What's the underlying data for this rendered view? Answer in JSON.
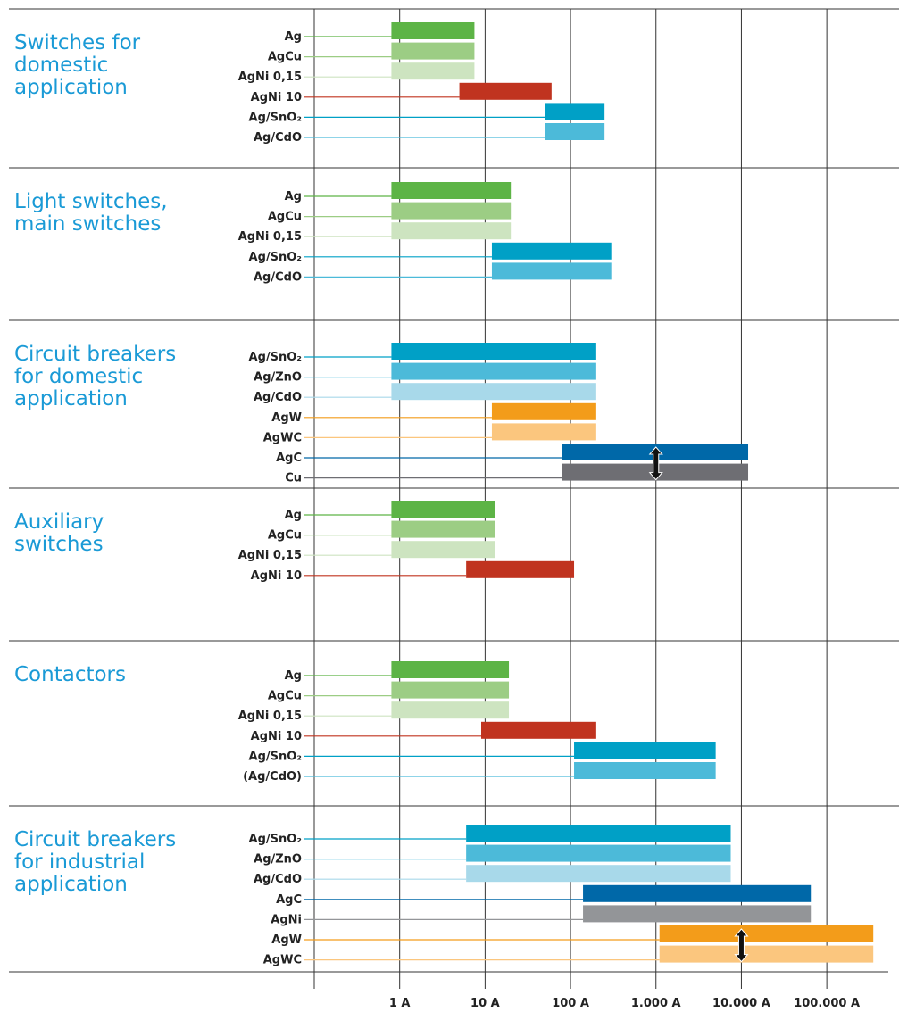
{
  "chart_data": {
    "type": "floating-bar",
    "log_scale": true,
    "xlim": [
      0.1,
      700000
    ],
    "xticks": [
      {
        "value": 1,
        "label": "1 A"
      },
      {
        "value": 10,
        "label": "10 A"
      },
      {
        "value": 100,
        "label": "100 A"
      },
      {
        "value": 1000,
        "label": "1.000 A"
      },
      {
        "value": 10000,
        "label": "10.000 A"
      },
      {
        "value": 100000,
        "label": "100.000 A"
      }
    ],
    "grid": true,
    "groups": [
      {
        "name_lines": [
          "Switches for",
          "domestic",
          "application"
        ],
        "rows": [
          {
            "name": "Ag",
            "color": "#5db446",
            "range": [
              0.8,
              7.5
            ]
          },
          {
            "name": "AgCu",
            "color": "#9ccd84",
            "range": [
              0.8,
              7.5
            ]
          },
          {
            "name": "AgNi 0,15",
            "color": "#cde4c0",
            "range": [
              0.8,
              7.5
            ]
          },
          {
            "name": "AgNi 10",
            "color": "#c0331f",
            "range": [
              5,
              60
            ]
          },
          {
            "name": "Ag/SnO₂",
            "color": "#00a0c6",
            "range": [
              50,
              250
            ]
          },
          {
            "name": "Ag/CdO",
            "color": "#4cbad9",
            "range": [
              50,
              250
            ]
          }
        ]
      },
      {
        "name_lines": [
          "Light switches,",
          "main switches"
        ],
        "rows": [
          {
            "name": "Ag",
            "color": "#5db446",
            "range": [
              0.8,
              20
            ]
          },
          {
            "name": "AgCu",
            "color": "#9ccd84",
            "range": [
              0.8,
              20
            ]
          },
          {
            "name": "AgNi 0,15",
            "color": "#cde4c0",
            "range": [
              0.8,
              20
            ]
          },
          {
            "name": "Ag/SnO₂",
            "color": "#00a0c6",
            "range": [
              12,
              300
            ]
          },
          {
            "name": "Ag/CdO",
            "color": "#4cbad9",
            "range": [
              12,
              300
            ]
          }
        ]
      },
      {
        "name_lines": [
          "Circuit breakers",
          "for domestic",
          "application"
        ],
        "arrow_at": 1000,
        "rows": [
          {
            "name": "Ag/SnO₂",
            "color": "#00a0c6",
            "range": [
              0.8,
              200
            ]
          },
          {
            "name": "Ag/ZnO",
            "color": "#4cbad9",
            "range": [
              0.8,
              200
            ]
          },
          {
            "name": "Ag/CdO",
            "color": "#a8d9ea",
            "range": [
              0.8,
              200
            ]
          },
          {
            "name": "AgW",
            "color": "#f39c1a",
            "range": [
              12,
              200
            ]
          },
          {
            "name": "AgWC",
            "color": "#fbc67e",
            "range": [
              12,
              200
            ]
          },
          {
            "name": "AgC",
            "color": "#0068a8",
            "range": [
              80,
              12000
            ]
          },
          {
            "name": "Cu",
            "color": "#6e6e73",
            "range": [
              80,
              12000
            ]
          }
        ]
      },
      {
        "name_lines": [
          "Auxiliary",
          "switches"
        ],
        "rows": [
          {
            "name": "Ag",
            "color": "#5db446",
            "range": [
              0.8,
              13
            ]
          },
          {
            "name": "AgCu",
            "color": "#9ccd84",
            "range": [
              0.8,
              13
            ]
          },
          {
            "name": "AgNi 0,15",
            "color": "#cde4c0",
            "range": [
              0.8,
              13
            ]
          },
          {
            "name": "AgNi 10",
            "color": "#c0331f",
            "range": [
              6,
              110
            ]
          }
        ]
      },
      {
        "name_lines": [
          "Contactors"
        ],
        "rows": [
          {
            "name": "Ag",
            "color": "#5db446",
            "range": [
              0.8,
              19
            ]
          },
          {
            "name": "AgCu",
            "color": "#9ccd84",
            "range": [
              0.8,
              19
            ]
          },
          {
            "name": "AgNi 0,15",
            "color": "#cde4c0",
            "range": [
              0.8,
              19
            ]
          },
          {
            "name": "AgNi 10",
            "color": "#c0331f",
            "range": [
              9,
              200
            ]
          },
          {
            "name": "Ag/SnO₂",
            "color": "#00a0c6",
            "range": [
              110,
              5000
            ]
          },
          {
            "name": "(Ag/CdO)",
            "color": "#4cbad9",
            "range": [
              110,
              5000
            ]
          }
        ]
      },
      {
        "name_lines": [
          "Circuit breakers",
          "for industrial",
          "application"
        ],
        "arrow_at": 10000,
        "rows": [
          {
            "name": "Ag/SnO₂",
            "color": "#00a0c6",
            "range": [
              6,
              7500
            ]
          },
          {
            "name": "Ag/ZnO",
            "color": "#4cbad9",
            "range": [
              6,
              7500
            ]
          },
          {
            "name": "Ag/CdO",
            "color": "#a8d9ea",
            "range": [
              6,
              7500
            ]
          },
          {
            "name": "AgC",
            "color": "#0068a8",
            "range": [
              140,
              65000
            ]
          },
          {
            "name": "AgNi",
            "color": "#939598",
            "range": [
              140,
              65000
            ]
          },
          {
            "name": "AgW",
            "color": "#f39c1a",
            "range": [
              1100,
              350000
            ]
          },
          {
            "name": "AgWC",
            "color": "#fbc67e",
            "range": [
              1100,
              350000
            ]
          }
        ]
      }
    ]
  }
}
